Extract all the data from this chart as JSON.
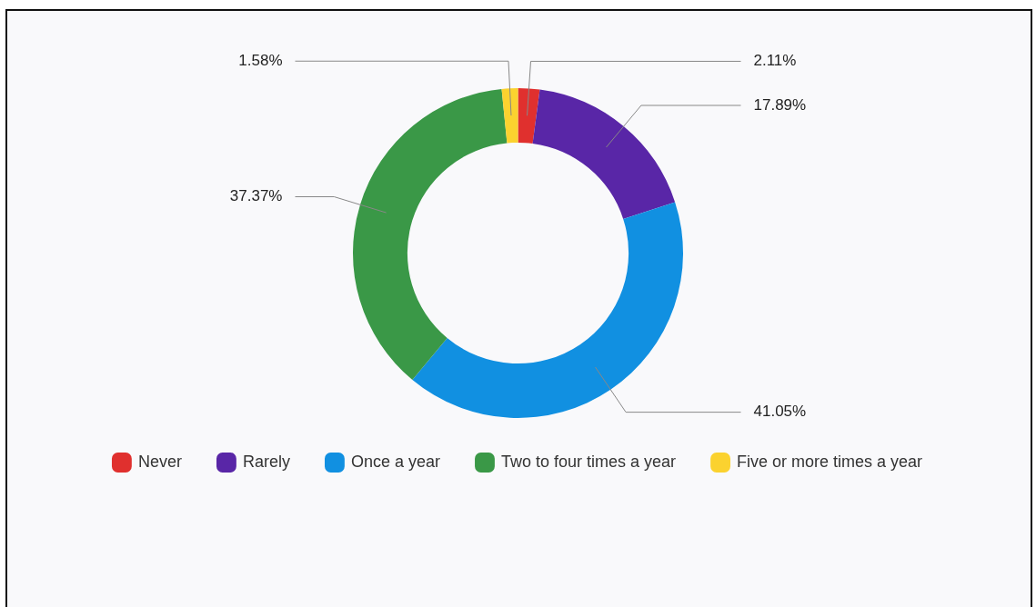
{
  "chart_data": {
    "type": "donut",
    "categories": [
      "Never",
      "Rarely",
      "Once a year",
      "Two to four times a year",
      "Five or more times a year"
    ],
    "values": [
      2.11,
      17.89,
      41.05,
      37.37,
      1.58
    ],
    "value_labels": [
      "2.11%",
      "17.89%",
      "41.05%",
      "37.37%",
      "1.58%"
    ],
    "colors": [
      "#e0302e",
      "#5926a7",
      "#1190e1",
      "#3a9847",
      "#fbd22f"
    ],
    "legend": "bottom"
  }
}
